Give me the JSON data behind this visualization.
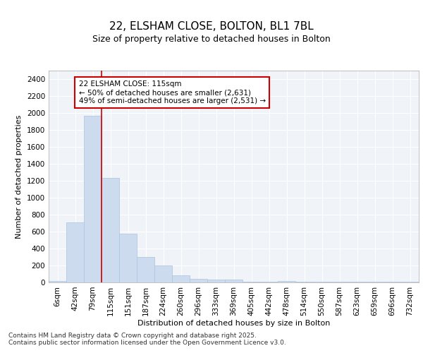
{
  "title1": "22, ELSHAM CLOSE, BOLTON, BL1 7BL",
  "title2": "Size of property relative to detached houses in Bolton",
  "xlabel": "Distribution of detached houses by size in Bolton",
  "ylabel": "Number of detached properties",
  "categories": [
    "6sqm",
    "42sqm",
    "79sqm",
    "115sqm",
    "151sqm",
    "187sqm",
    "224sqm",
    "260sqm",
    "296sqm",
    "333sqm",
    "369sqm",
    "405sqm",
    "442sqm",
    "478sqm",
    "514sqm",
    "550sqm",
    "587sqm",
    "623sqm",
    "659sqm",
    "696sqm",
    "732sqm"
  ],
  "values": [
    15,
    710,
    1970,
    1235,
    575,
    300,
    200,
    80,
    45,
    35,
    30,
    5,
    5,
    15,
    5,
    5,
    5,
    5,
    5,
    5,
    5
  ],
  "bar_color": "#ccdcee",
  "bar_edge_color": "#aac4de",
  "vline_color": "#cc0000",
  "vline_x_index": 2.5,
  "annotation_text_line1": "22 ELSHAM CLOSE: 115sqm",
  "annotation_text_line2": "← 50% of detached houses are smaller (2,631)",
  "annotation_text_line3": "49% of semi-detached houses are larger (2,531) →",
  "annotation_box_facecolor": "#ffffff",
  "annotation_box_edgecolor": "#cc0000",
  "ylim": [
    0,
    2500
  ],
  "yticks": [
    0,
    200,
    400,
    600,
    800,
    1000,
    1200,
    1400,
    1600,
    1800,
    2000,
    2200,
    2400
  ],
  "bg_color": "#ffffff",
  "plot_bg_color": "#f0f4f8",
  "grid_color": "#ffffff",
  "title1_fontsize": 11,
  "title2_fontsize": 9,
  "axis_fontsize": 8,
  "tick_fontsize": 7.5,
  "annotation_fontsize": 7.5,
  "footer_fontsize": 6.5,
  "footer": "Contains HM Land Registry data © Crown copyright and database right 2025.\nContains public sector information licensed under the Open Government Licence v3.0."
}
